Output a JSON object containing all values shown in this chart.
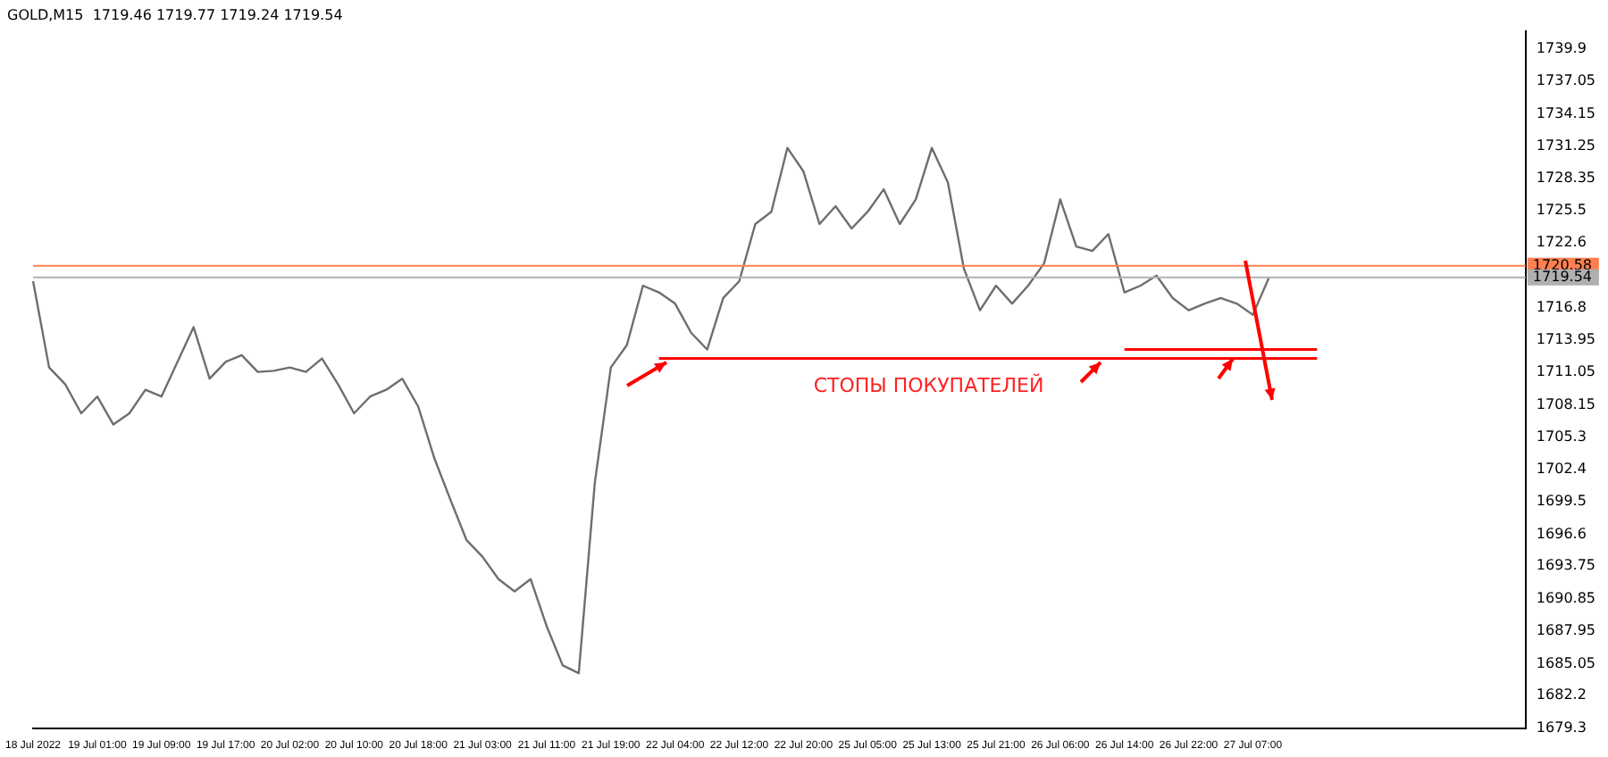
{
  "chart_data": {
    "type": "line",
    "title": "GOLD,M15  1719.46 1719.77 1719.24 1719.54",
    "categories": [
      "18 Jul 2022",
      null,
      null,
      null,
      "19 Jul 01:00",
      null,
      null,
      null,
      "19 Jul 09:00",
      null,
      null,
      null,
      "19 Jul 17:00",
      null,
      null,
      null,
      "20 Jul 02:00",
      null,
      null,
      null,
      "20 Jul 10:00",
      null,
      null,
      null,
      "20 Jul 18:00",
      null,
      null,
      null,
      "21 Jul 03:00",
      null,
      null,
      null,
      "21 Jul 11:00",
      null,
      null,
      null,
      "21 Jul 19:00",
      null,
      null,
      null,
      "22 Jul 04:00",
      null,
      null,
      null,
      "22 Jul 12:00",
      null,
      null,
      null,
      "22 Jul 20:00",
      null,
      null,
      null,
      "25 Jul 05:00",
      null,
      null,
      null,
      "25 Jul 13:00",
      null,
      null,
      null,
      "25 Jul 21:00",
      null,
      null,
      null,
      "26 Jul 06:00",
      null,
      null,
      null,
      "26 Jul 14:00",
      null,
      null,
      null,
      "26 Jul 22:00",
      null,
      null,
      null,
      "27 Jul 07:00",
      null,
      null,
      null,
      null,
      null,
      null,
      null,
      null,
      null,
      null,
      null,
      null,
      null,
      null,
      null,
      null,
      null
    ],
    "series": [
      {
        "color": "#6e6e6e",
        "values": [
          1719.2,
          1711.5,
          1710.0,
          1707.4,
          1708.9,
          1706.4,
          1707.4,
          1709.5,
          1708.9,
          1712.0,
          1715.1,
          1710.5,
          1712.0,
          1712.6,
          1711.1,
          1711.2,
          1711.5,
          1711.1,
          1712.3,
          1710.0,
          1707.4,
          1708.9,
          1709.5,
          1710.5,
          1708.0,
          1703.4,
          1699.7,
          1696.1,
          1694.6,
          1692.6,
          1691.5,
          1692.6,
          1688.4,
          1684.9,
          1684.2,
          1701.2,
          1711.5,
          1713.5,
          1718.8,
          1718.2,
          1717.2,
          1714.6,
          1713.1,
          1717.7,
          1719.2,
          1724.3,
          1725.4,
          1731.1,
          1729.0,
          1724.3,
          1725.9,
          1723.9,
          1725.4,
          1727.4,
          1724.3,
          1726.5,
          1731.1,
          1728.0,
          1720.3,
          1716.6,
          1718.8,
          1717.2,
          1718.8,
          1720.8,
          1726.5,
          1722.3,
          1721.9,
          1723.4,
          1718.2,
          1718.8,
          1719.7,
          1717.7,
          1716.6,
          1717.2,
          1717.7,
          1717.2,
          1716.2,
          1719.5,
          null,
          null,
          null,
          null,
          null,
          null,
          null,
          null,
          null,
          null,
          null,
          null,
          null,
          null,
          null,
          null
        ]
      },
      {
        "color": "#ff0000",
        "values": [
          null,
          null,
          null,
          null,
          null,
          null,
          null,
          null,
          null,
          null,
          null,
          null,
          null,
          null,
          null,
          null,
          null,
          null,
          null,
          null,
          null,
          null,
          null,
          null,
          null,
          null,
          null,
          null,
          null,
          null,
          null,
          null,
          null,
          null,
          null,
          null,
          null,
          null,
          null,
          1712.3,
          1712.3,
          1712.3,
          1712.3,
          1712.3,
          1712.3,
          1712.3,
          1712.3,
          1712.3,
          1712.3,
          1712.3,
          1712.3,
          1712.3,
          1712.3,
          1712.3,
          1712.3,
          1712.3,
          1712.3,
          1712.3,
          1712.3,
          1712.3,
          1712.3,
          1712.3,
          1712.3,
          1712.3,
          1712.3,
          1712.3,
          1712.3,
          1712.3,
          1712.3,
          1712.3,
          1712.3,
          1712.3,
          1712.3,
          1712.3,
          1712.3,
          1712.3,
          1712.3,
          1712.3,
          1712.3,
          1712.3,
          1712.3,
          null,
          null,
          null,
          null,
          null,
          null,
          null,
          null,
          null,
          null,
          null,
          null,
          null
        ]
      },
      {
        "color": "#ff0000",
        "values": [
          null,
          null,
          null,
          null,
          null,
          null,
          null,
          null,
          null,
          null,
          null,
          null,
          null,
          null,
          null,
          null,
          null,
          null,
          null,
          null,
          null,
          null,
          null,
          null,
          null,
          null,
          null,
          null,
          null,
          null,
          null,
          null,
          null,
          null,
          null,
          null,
          null,
          null,
          null,
          null,
          null,
          null,
          null,
          null,
          null,
          null,
          null,
          null,
          null,
          null,
          null,
          null,
          null,
          null,
          null,
          null,
          null,
          null,
          null,
          null,
          null,
          null,
          null,
          null,
          null,
          null,
          null,
          null,
          1713.1,
          1713.1,
          1713.1,
          1713.1,
          1713.1,
          1713.1,
          1713.1,
          1713.1,
          1713.1,
          1713.1,
          1713.1,
          1713.1,
          1713.1,
          null,
          null,
          null,
          null,
          null,
          null,
          null,
          null,
          null,
          null,
          null,
          null,
          null
        ]
      }
    ],
    "ylim": [
      1679.3,
      1741.5
    ],
    "yticks": [
      1679.3,
      1682.2,
      1685.05,
      1687.95,
      1690.85,
      1693.75,
      1696.6,
      1699.5,
      1702.4,
      1705.3,
      1708.15,
      1711.05,
      1713.95,
      1716.8,
      1722.6,
      1725.5,
      1728.35,
      1731.25,
      1734.15,
      1737.05,
      1739.9
    ],
    "ref_lines": [
      {
        "axis": "y",
        "value": 1720.58,
        "label": "1720.58",
        "color": "#ff7f50"
      },
      {
        "axis": "y",
        "value": 1719.54,
        "label": "1719.54",
        "color": "#b0b0b0"
      }
    ],
    "annotations": [
      "СТОПЫ ПОКУПАТЕЛЕЙ"
    ],
    "grid": false,
    "legend": false,
    "marker": "none"
  }
}
